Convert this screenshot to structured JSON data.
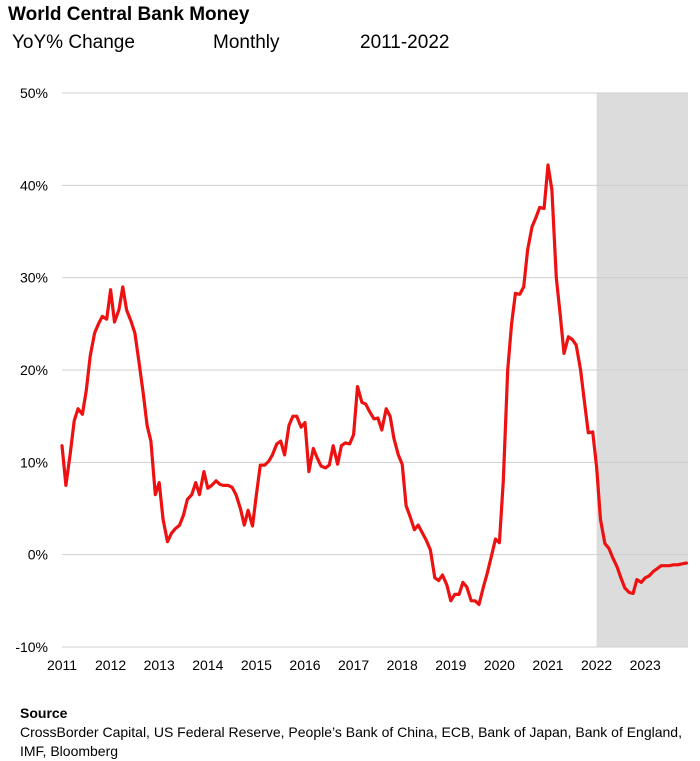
{
  "header": {
    "title": "World Central Bank Money",
    "subtitle_measure": "YoY% Change",
    "subtitle_frequency": "Monthly",
    "subtitle_period": "2011-2022"
  },
  "source": {
    "heading": "Source",
    "text": "CrossBorder Capital, US Federal Reserve, People’s Bank of China, ECB, Bank of Japan, Bank of England, IMF, Bloomberg"
  },
  "chart_data": {
    "type": "line",
    "title": "World Central Bank Money",
    "xlabel": "",
    "ylabel": "",
    "xlim": [
      2011,
      2023.9
    ],
    "ylim": [
      -10,
      50
    ],
    "grid": true,
    "y_ticks": [
      {
        "value": 50,
        "label": "50%"
      },
      {
        "value": 40,
        "label": "40%"
      },
      {
        "value": 30,
        "label": "30%"
      },
      {
        "value": 20,
        "label": "20%"
      },
      {
        "value": 10,
        "label": "10%"
      },
      {
        "value": 0,
        "label": "0%"
      },
      {
        "value": -10,
        "label": "-10%"
      }
    ],
    "x_ticks": [
      {
        "value": 2011,
        "label": "2011"
      },
      {
        "value": 2012,
        "label": "2012"
      },
      {
        "value": 2013,
        "label": "2013"
      },
      {
        "value": 2014,
        "label": "2014"
      },
      {
        "value": 2015,
        "label": "2015"
      },
      {
        "value": 2016,
        "label": "2016"
      },
      {
        "value": 2017,
        "label": "2017"
      },
      {
        "value": 2018,
        "label": "2018"
      },
      {
        "value": 2019,
        "label": "2019"
      },
      {
        "value": 2020,
        "label": "2020"
      },
      {
        "value": 2021,
        "label": "2021"
      },
      {
        "value": 2022,
        "label": "2022"
      },
      {
        "value": 2023,
        "label": "2023"
      }
    ],
    "shaded_region": {
      "x_start": 2022.0,
      "x_end": 2023.9,
      "color": "#dcdcdc"
    },
    "series": [
      {
        "color": "#ee1111",
        "x": [
          2011.0,
          2011.08,
          2011.17,
          2011.25,
          2011.33,
          2011.42,
          2011.5,
          2011.58,
          2011.67,
          2011.75,
          2011.83,
          2011.92,
          2012.0,
          2012.08,
          2012.17,
          2012.25,
          2012.33,
          2012.42,
          2012.5,
          2012.58,
          2012.67,
          2012.75,
          2012.83,
          2012.92,
          2013.0,
          2013.08,
          2013.17,
          2013.25,
          2013.33,
          2013.42,
          2013.5,
          2013.58,
          2013.67,
          2013.75,
          2013.83,
          2013.92,
          2014.0,
          2014.08,
          2014.17,
          2014.25,
          2014.33,
          2014.42,
          2014.5,
          2014.58,
          2014.67,
          2014.75,
          2014.83,
          2014.92,
          2015.0,
          2015.08,
          2015.17,
          2015.25,
          2015.33,
          2015.42,
          2015.5,
          2015.58,
          2015.67,
          2015.75,
          2015.83,
          2015.92,
          2016.0,
          2016.08,
          2016.17,
          2016.25,
          2016.33,
          2016.42,
          2016.5,
          2016.58,
          2016.67,
          2016.75,
          2016.83,
          2016.92,
          2017.0,
          2017.08,
          2017.17,
          2017.25,
          2017.33,
          2017.42,
          2017.5,
          2017.58,
          2017.67,
          2017.75,
          2017.83,
          2017.92,
          2018.0,
          2018.08,
          2018.17,
          2018.25,
          2018.33,
          2018.42,
          2018.5,
          2018.58,
          2018.67,
          2018.75,
          2018.83,
          2018.92,
          2019.0,
          2019.08,
          2019.17,
          2019.25,
          2019.33,
          2019.42,
          2019.5,
          2019.58,
          2019.67,
          2019.75,
          2019.83,
          2019.92,
          2020.0,
          2020.08,
          2020.17,
          2020.25,
          2020.33,
          2020.42,
          2020.5,
          2020.58,
          2020.67,
          2020.75,
          2020.83,
          2020.92,
          2021.0,
          2021.08,
          2021.17,
          2021.25,
          2021.33,
          2021.42,
          2021.5,
          2021.58,
          2021.67,
          2021.75,
          2021.83,
          2021.92,
          2022.0,
          2022.08,
          2022.17,
          2022.25,
          2022.33,
          2022.42,
          2022.5,
          2022.58,
          2022.67,
          2022.75,
          2022.83,
          2022.92,
          2023.0,
          2023.08,
          2023.17,
          2023.25,
          2023.33,
          2023.42,
          2023.5,
          2023.58,
          2023.67,
          2023.75,
          2023.85
        ],
        "values": [
          11.8,
          7.5,
          11.0,
          14.5,
          15.8,
          15.2,
          17.8,
          21.5,
          24.0,
          25.0,
          25.8,
          25.5,
          28.7,
          25.2,
          26.5,
          29.0,
          26.5,
          25.3,
          24.0,
          21.0,
          17.5,
          14.0,
          12.3,
          6.5,
          7.8,
          3.8,
          1.4,
          2.3,
          2.8,
          3.2,
          4.3,
          6.0,
          6.5,
          7.8,
          6.5,
          9.0,
          7.2,
          7.5,
          8.0,
          7.6,
          7.5,
          7.5,
          7.3,
          6.5,
          5.0,
          3.2,
          4.8,
          3.1,
          6.5,
          9.7,
          9.7,
          10.1,
          10.8,
          12.0,
          12.3,
          10.8,
          14.0,
          15.0,
          15.0,
          13.8,
          14.3,
          9.0,
          11.5,
          10.5,
          9.6,
          9.4,
          9.7,
          11.8,
          9.8,
          11.8,
          12.1,
          12.0,
          13.0,
          18.2,
          16.5,
          16.3,
          15.5,
          14.7,
          14.8,
          13.5,
          15.8,
          15.0,
          12.6,
          10.8,
          9.8,
          5.3,
          4.0,
          2.7,
          3.2,
          2.3,
          1.5,
          0.5,
          -2.5,
          -2.8,
          -2.2,
          -3.3,
          -5.0,
          -4.3,
          -4.3,
          -3.0,
          -3.5,
          -5.0,
          -5.0,
          -5.4,
          -3.5,
          -2.0,
          -0.3,
          1.7,
          1.3,
          8.0,
          20.0,
          25.0,
          28.3,
          28.2,
          29.0,
          33.0,
          35.5,
          36.5,
          37.6,
          37.5,
          42.2,
          39.5,
          30.0,
          26.0,
          21.8,
          23.6,
          23.3,
          22.7,
          20.0,
          16.5,
          13.2,
          13.3,
          9.5,
          3.8,
          1.2,
          0.7,
          -0.3,
          -1.3,
          -2.5,
          -3.6,
          -4.1,
          -4.2,
          -2.7,
          -3.0,
          -2.5,
          -2.3,
          -1.8,
          -1.5,
          -1.2,
          -1.2,
          -1.2,
          -1.1,
          -1.1,
          -1.0,
          -0.9
        ]
      }
    ]
  }
}
